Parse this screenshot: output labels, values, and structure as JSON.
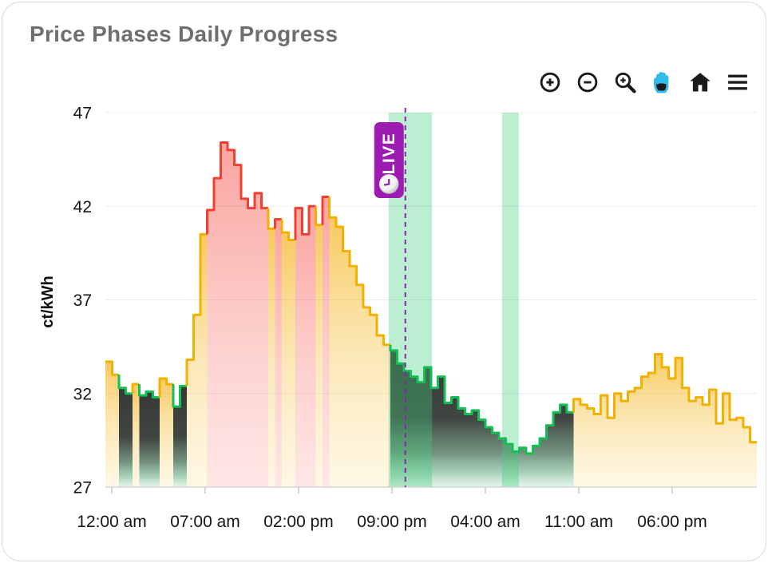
{
  "toolbar": {
    "active_tool": "pan",
    "active_color": "#33BBEC",
    "icon_color": "#1B1B1B",
    "tools": [
      {
        "name": "zoom-in"
      },
      {
        "name": "zoom-out"
      },
      {
        "name": "box-zoom"
      },
      {
        "name": "pan"
      },
      {
        "name": "reset-view"
      },
      {
        "name": "menu"
      }
    ]
  },
  "chart_data": {
    "type": "area",
    "step": true,
    "title": "Price Phases Daily Progress",
    "ylabel": "ct/kWh",
    "unit": "ct/kWh",
    "ylim": [
      27,
      47
    ],
    "y_ticks": [
      47,
      42,
      37,
      32,
      27
    ],
    "x_ticks": [
      {
        "label": "12:00 am",
        "hour": 0
      },
      {
        "label": "07:00 am",
        "hour": 7
      },
      {
        "label": "02:00 pm",
        "hour": 14
      },
      {
        "label": "09:00 pm",
        "hour": 21
      },
      {
        "label": "04:00 am",
        "hour": 28
      },
      {
        "label": "11:00 am",
        "hour": 35
      },
      {
        "label": "06:00 pm",
        "hour": 42
      }
    ],
    "hours_total": 48,
    "interval_hours": 0.5,
    "phase_colors": {
      "y": "#F2B100",
      "r": "#F23F33",
      "g": "#14C053"
    },
    "points": [
      [
        33.7,
        "y"
      ],
      [
        33.0,
        "y"
      ],
      [
        32.3,
        "g"
      ],
      [
        32.0,
        "g"
      ],
      [
        32.5,
        "y"
      ],
      [
        31.9,
        "g"
      ],
      [
        32.1,
        "g"
      ],
      [
        31.8,
        "g"
      ],
      [
        32.8,
        "y"
      ],
      [
        32.5,
        "y"
      ],
      [
        31.3,
        "g"
      ],
      [
        32.4,
        "g"
      ],
      [
        33.8,
        "y"
      ],
      [
        36.2,
        "y"
      ],
      [
        40.5,
        "y"
      ],
      [
        41.8,
        "r"
      ],
      [
        43.5,
        "r"
      ],
      [
        45.4,
        "r"
      ],
      [
        45.0,
        "r"
      ],
      [
        44.2,
        "r"
      ],
      [
        42.4,
        "r"
      ],
      [
        41.9,
        "r"
      ],
      [
        42.7,
        "r"
      ],
      [
        41.9,
        "r"
      ],
      [
        40.8,
        "y"
      ],
      [
        41.3,
        "r"
      ],
      [
        40.6,
        "y"
      ],
      [
        40.2,
        "y"
      ],
      [
        41.9,
        "r"
      ],
      [
        40.5,
        "r"
      ],
      [
        42.0,
        "r"
      ],
      [
        41.0,
        "y"
      ],
      [
        42.5,
        "r"
      ],
      [
        41.4,
        "y"
      ],
      [
        40.9,
        "y"
      ],
      [
        39.6,
        "y"
      ],
      [
        38.8,
        "y"
      ],
      [
        37.8,
        "y"
      ],
      [
        36.6,
        "y"
      ],
      [
        36.2,
        "y"
      ],
      [
        35.1,
        "y"
      ],
      [
        34.6,
        "y"
      ],
      [
        34.3,
        "g"
      ],
      [
        33.6,
        "g"
      ],
      [
        33.2,
        "g"
      ],
      [
        32.9,
        "g"
      ],
      [
        32.6,
        "g"
      ],
      [
        33.4,
        "g"
      ],
      [
        32.3,
        "g"
      ],
      [
        32.9,
        "g"
      ],
      [
        31.5,
        "g"
      ],
      [
        31.8,
        "g"
      ],
      [
        31.2,
        "g"
      ],
      [
        30.9,
        "g"
      ],
      [
        31.1,
        "g"
      ],
      [
        30.6,
        "g"
      ],
      [
        30.2,
        "g"
      ],
      [
        29.9,
        "g"
      ],
      [
        29.6,
        "g"
      ],
      [
        29.3,
        "g"
      ],
      [
        28.9,
        "g"
      ],
      [
        29.1,
        "g"
      ],
      [
        28.8,
        "g"
      ],
      [
        29.2,
        "g"
      ],
      [
        29.6,
        "g"
      ],
      [
        30.3,
        "g"
      ],
      [
        31.0,
        "g"
      ],
      [
        31.4,
        "g"
      ],
      [
        31.0,
        "g"
      ],
      [
        31.7,
        "y"
      ],
      [
        31.4,
        "y"
      ],
      [
        31.2,
        "y"
      ],
      [
        30.9,
        "y"
      ],
      [
        31.9,
        "y"
      ],
      [
        30.7,
        "y"
      ],
      [
        32.0,
        "y"
      ],
      [
        31.6,
        "y"
      ],
      [
        32.1,
        "y"
      ],
      [
        32.3,
        "y"
      ],
      [
        32.9,
        "y"
      ],
      [
        33.1,
        "y"
      ],
      [
        34.1,
        "y"
      ],
      [
        33.4,
        "y"
      ],
      [
        32.8,
        "y"
      ],
      [
        33.9,
        "y"
      ],
      [
        32.3,
        "y"
      ],
      [
        31.6,
        "y"
      ],
      [
        31.8,
        "y"
      ],
      [
        31.4,
        "y"
      ],
      [
        32.2,
        "y"
      ],
      [
        30.4,
        "y"
      ],
      [
        32.0,
        "y"
      ],
      [
        30.6,
        "y"
      ],
      [
        30.7,
        "y"
      ],
      [
        30.2,
        "y"
      ],
      [
        29.4,
        "y"
      ]
    ],
    "cheap_windows": [
      {
        "from_hour": 20.75,
        "to_hour": 24.0
      },
      {
        "from_hour": 29.25,
        "to_hour": 30.5
      }
    ],
    "band_color": "rgba(62,205,122,0.35)",
    "live_marker": {
      "label": "LIVE",
      "hour": 22,
      "color": "#9C1BB1",
      "line_color": "#8E24AA"
    },
    "grid_color": "#ECECEC",
    "axis_line_color": "#D6D6D6",
    "tick_color": "#C9C9C9",
    "tick_label_color": "#161616",
    "legend": "none"
  }
}
